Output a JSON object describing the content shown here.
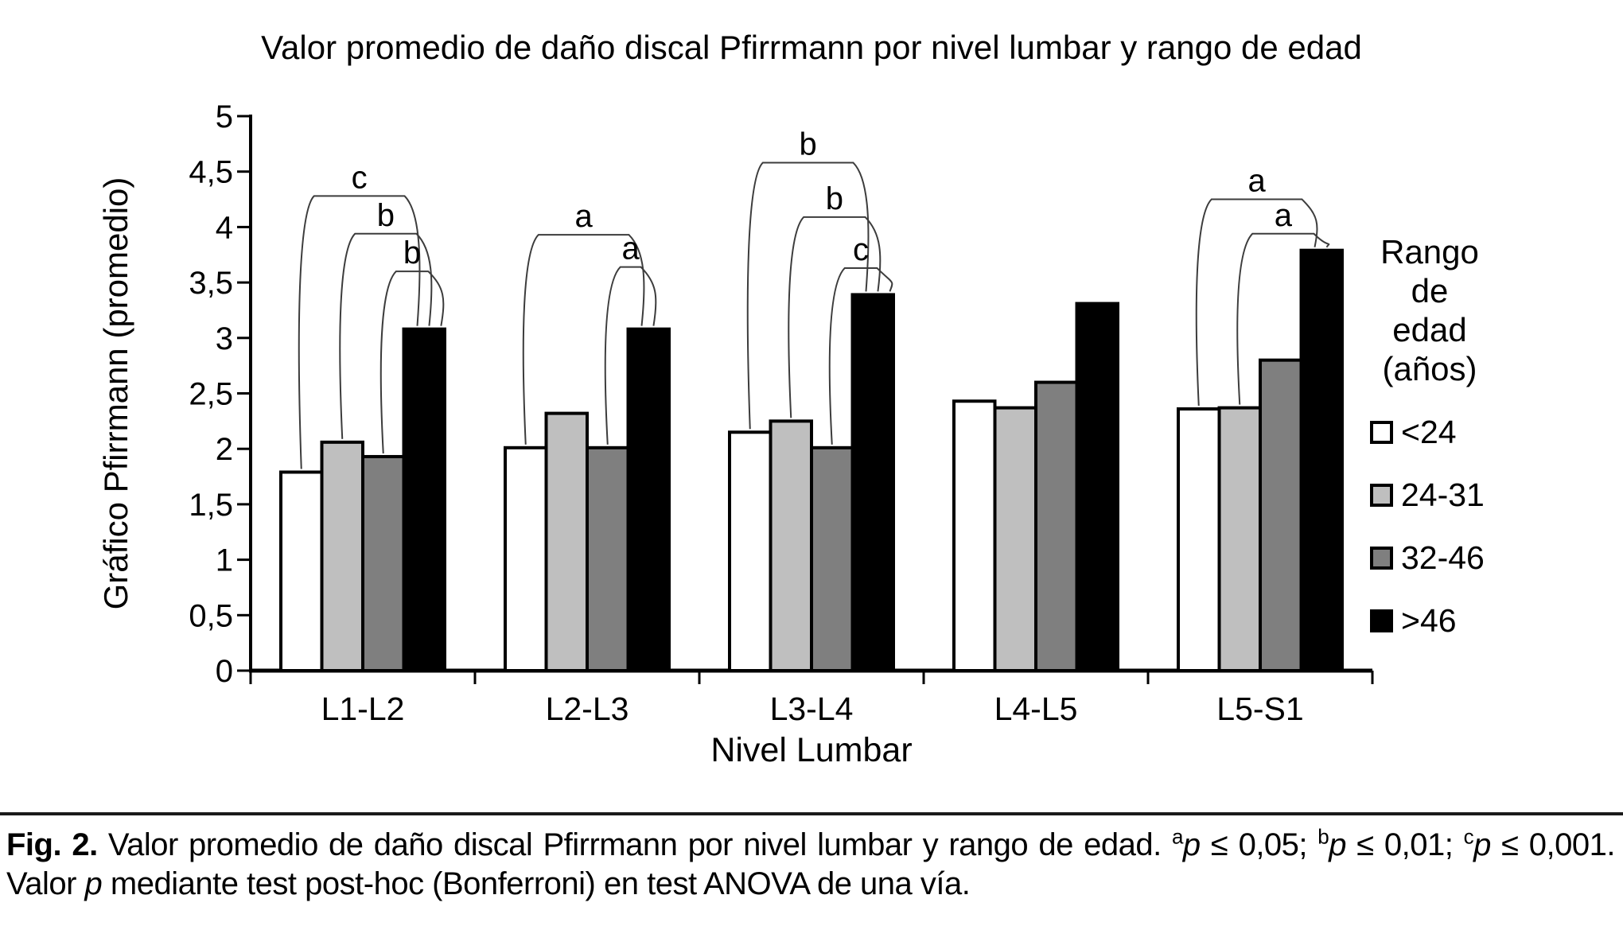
{
  "chart_data": {
    "type": "bar",
    "title": "Valor promedio de daño discal Pfirrmann por nivel lumbar y rango de edad",
    "xlabel": "Nivel Lumbar",
    "ylabel": "Gráfico Pfirrmann (promedio)",
    "categories": [
      "L1-L2",
      "L2-L3",
      "L3-L4",
      "L4-L5",
      "L5-S1"
    ],
    "series": [
      {
        "name": "<24",
        "color": "#ffffff",
        "values": [
          1.79,
          2.01,
          2.15,
          2.43,
          2.36
        ]
      },
      {
        "name": "24-31",
        "color": "#bfbfbf",
        "values": [
          2.06,
          2.32,
          2.25,
          2.37,
          2.37
        ]
      },
      {
        "name": "32-46",
        "color": "#7f7f7f",
        "values": [
          1.93,
          2.01,
          2.01,
          2.6,
          2.8
        ]
      },
      {
        "name": ">46",
        "color": "#000000",
        "values": [
          3.08,
          3.08,
          3.39,
          3.31,
          3.79
        ]
      }
    ],
    "ylim": [
      0,
      5
    ],
    "ytick_labels": [
      "0",
      "0,5",
      "1",
      "1,5",
      "2",
      "2,5",
      "3",
      "3,5",
      "4",
      "4,5",
      "5"
    ],
    "grid": false,
    "legend_position": "right",
    "significance_brackets": [
      {
        "group": 0,
        "from_bar": 0,
        "to_bar": 3,
        "y": 4.28,
        "label": "c"
      },
      {
        "group": 0,
        "from_bar": 1,
        "to_bar": 3,
        "y": 3.94,
        "label": "b"
      },
      {
        "group": 0,
        "from_bar": 2,
        "to_bar": 3,
        "y": 3.6,
        "label": "b"
      },
      {
        "group": 1,
        "from_bar": 0,
        "to_bar": 3,
        "y": 3.93,
        "label": "a"
      },
      {
        "group": 1,
        "from_bar": 2,
        "to_bar": 3,
        "y": 3.64,
        "label": "a"
      },
      {
        "group": 2,
        "from_bar": 0,
        "to_bar": 3,
        "y": 4.58,
        "label": "b"
      },
      {
        "group": 2,
        "from_bar": 1,
        "to_bar": 3,
        "y": 4.09,
        "label": "b"
      },
      {
        "group": 2,
        "from_bar": 2,
        "to_bar": 3,
        "y": 3.63,
        "label": "c"
      },
      {
        "group": 4,
        "from_bar": 0,
        "to_bar": 3,
        "y": 4.25,
        "label": "a"
      },
      {
        "group": 4,
        "from_bar": 1,
        "to_bar": 3,
        "y": 3.94,
        "label": "a"
      }
    ]
  },
  "legend": {
    "title_lines": [
      "Rango",
      "de edad",
      "(años)"
    ],
    "items": [
      {
        "label": "<24",
        "color": "#ffffff"
      },
      {
        "label": "24-31",
        "color": "#bfbfbf"
      },
      {
        "label": "32-46",
        "color": "#7f7f7f"
      },
      {
        "label": ">46",
        "color": "#000000"
      }
    ]
  },
  "caption": {
    "segments": [
      {
        "t": "Fig. 2.",
        "b": true
      },
      {
        "t": " Valor promedio de daño discal Pfirrmann por nivel lumbar y rango de edad. "
      },
      {
        "t": "a",
        "sup": true
      },
      {
        "t": "p",
        "i": true
      },
      {
        "t": " ≤ 0,05; "
      },
      {
        "t": "b",
        "sup": true
      },
      {
        "t": "p",
        "i": true
      },
      {
        "t": " ≤ 0,01; "
      },
      {
        "t": "c",
        "sup": true
      },
      {
        "t": "p",
        "i": true
      },
      {
        "t": " ≤ 0,001. Valor "
      },
      {
        "t": "p",
        "i": true
      },
      {
        "t": " mediante test post-hoc (Bonferroni) en test ANOVA de una vía."
      }
    ]
  },
  "colors": {
    "axis": "#000000",
    "bracket_line": "#3c3c3c",
    "bar_border": "#000000"
  }
}
